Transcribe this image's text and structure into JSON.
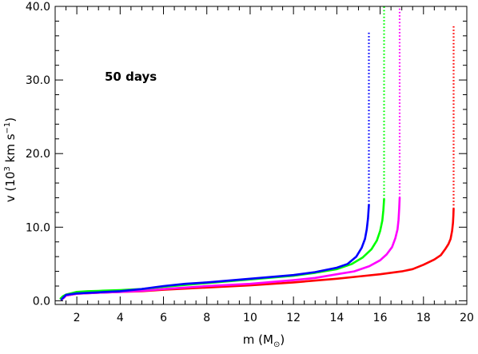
{
  "chart_data": {
    "type": "line",
    "title": "",
    "annotation": "50 days",
    "xlabel": "m (M",
    "xlabel_symbol": "⊙",
    "xlabel_close": ")",
    "ylabel": "v (10",
    "ylabel_sup": "3",
    "ylabel_mid": " km s",
    "ylabel_sup2": "−1",
    "ylabel_close": ")",
    "xlim": [
      1.0,
      20.0
    ],
    "ylim": [
      -0.5,
      40.0
    ],
    "xticks": [
      2,
      4,
      6,
      8,
      10,
      12,
      14,
      16,
      18,
      20
    ],
    "xtick_labels": [
      "2",
      "4",
      "6",
      "8",
      "10",
      "12",
      "14",
      "16",
      "18",
      "20"
    ],
    "yticks": [
      0,
      10,
      20,
      30,
      40
    ],
    "ytick_labels": [
      "0.0",
      "10.0",
      "20.0",
      "30.0",
      "40.0"
    ],
    "grid": false,
    "legend": "none",
    "series": [
      {
        "color": "#ff0000",
        "solid": {
          "x": [
            1.3,
            1.4,
            1.5,
            2,
            3,
            4,
            5,
            6,
            8,
            10,
            12,
            14,
            15,
            16,
            17,
            17.5,
            18,
            18.5,
            18.8,
            19.0,
            19.15,
            19.25,
            19.32,
            19.36,
            19.38,
            19.39
          ],
          "y": [
            0.2,
            0.4,
            0.7,
            0.95,
            1.1,
            1.2,
            1.3,
            1.5,
            1.8,
            2.1,
            2.5,
            3.0,
            3.3,
            3.6,
            4.0,
            4.3,
            4.9,
            5.6,
            6.2,
            7.0,
            7.7,
            8.4,
            9.5,
            10.6,
            11.6,
            12.5
          ]
        },
        "dotted": {
          "x": [
            19.39,
            19.39
          ],
          "y": [
            12.5,
            37.5
          ]
        }
      },
      {
        "color": "#ff00ff",
        "solid": {
          "x": [
            1.3,
            1.4,
            1.5,
            2,
            3,
            4,
            5,
            6,
            8,
            10,
            12,
            13,
            14,
            14.8,
            15.5,
            16.0,
            16.3,
            16.55,
            16.7,
            16.8,
            16.85,
            16.88,
            16.9
          ],
          "y": [
            0.2,
            0.4,
            0.7,
            0.95,
            1.1,
            1.2,
            1.35,
            1.6,
            2.0,
            2.3,
            2.8,
            3.1,
            3.6,
            4.0,
            4.7,
            5.5,
            6.3,
            7.3,
            8.5,
            9.7,
            11.0,
            12.5,
            14.0
          ]
        },
        "dotted": {
          "x": [
            16.9,
            16.9
          ],
          "y": [
            14.0,
            40.0
          ]
        }
      },
      {
        "color": "#00ff00",
        "solid": {
          "x": [
            1.25,
            1.35,
            1.5,
            2,
            2.5,
            3,
            4,
            5,
            6,
            8,
            10,
            12,
            13,
            14,
            14.7,
            15.2,
            15.6,
            15.85,
            16.0,
            16.1,
            16.15,
            16.18
          ],
          "y": [
            0.3,
            0.6,
            0.85,
            1.2,
            1.3,
            1.35,
            1.45,
            1.6,
            1.9,
            2.4,
            2.9,
            3.4,
            3.8,
            4.3,
            5.0,
            5.9,
            7.0,
            8.2,
            9.5,
            10.9,
            12.3,
            13.8
          ]
        },
        "dotted": {
          "x": [
            16.18,
            16.18
          ],
          "y": [
            13.8,
            40.0
          ]
        }
      },
      {
        "color": "#0000ff",
        "solid": {
          "x": [
            1.3,
            1.4,
            1.5,
            2,
            3,
            4,
            5,
            6,
            7,
            8,
            10,
            12,
            13,
            14,
            14.5,
            14.9,
            15.15,
            15.3,
            15.38,
            15.44,
            15.48
          ],
          "y": [
            0.2,
            0.5,
            0.8,
            1.0,
            1.15,
            1.3,
            1.6,
            2.0,
            2.3,
            2.5,
            3.0,
            3.5,
            3.9,
            4.5,
            5.0,
            6.0,
            7.2,
            8.4,
            9.7,
            11.2,
            13.0
          ]
        },
        "dotted": {
          "x": [
            15.48,
            15.48
          ],
          "y": [
            13.0,
            36.5
          ]
        }
      }
    ]
  }
}
